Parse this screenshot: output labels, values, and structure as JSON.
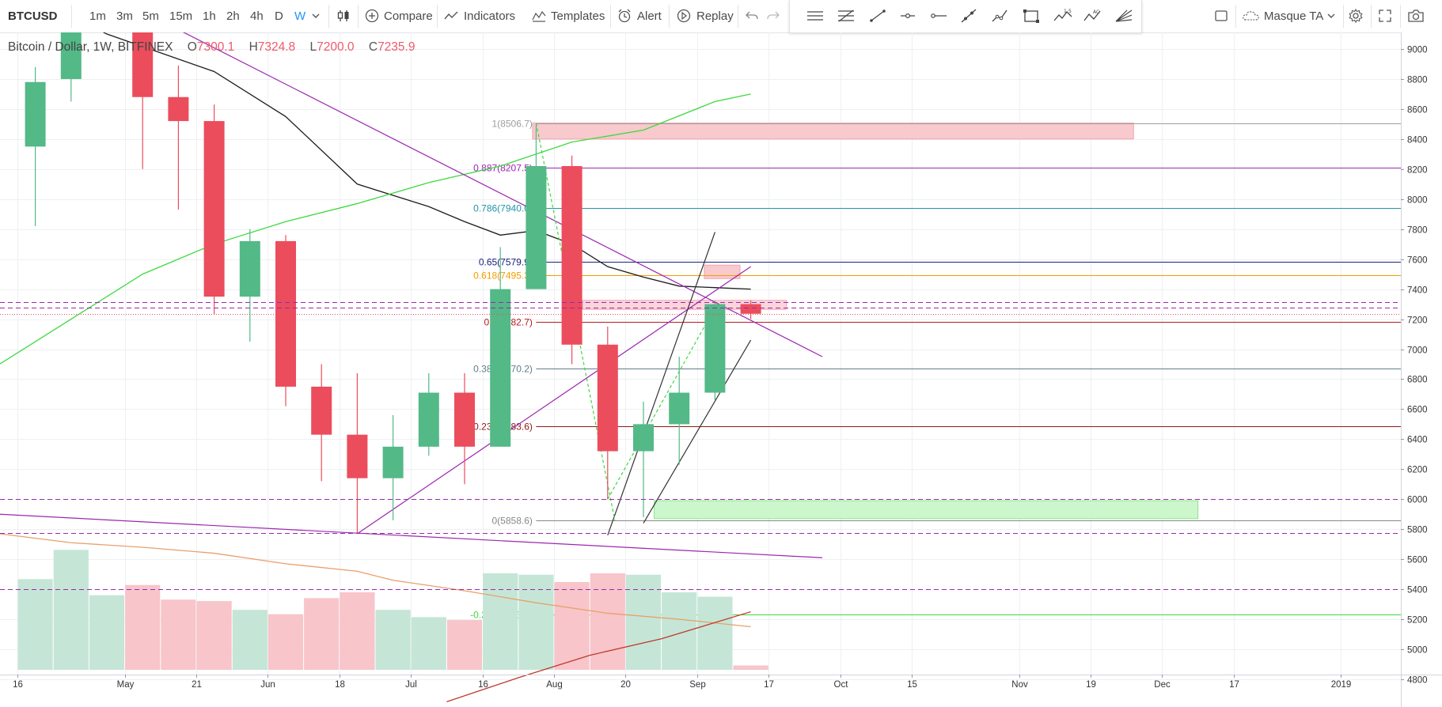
{
  "toolbar": {
    "symbol": "BTCUSD",
    "intervals": [
      "1m",
      "3m",
      "5m",
      "15m",
      "1h",
      "2h",
      "4h",
      "D",
      "W"
    ],
    "active_interval": "W",
    "compare_label": "Compare",
    "indicators_label": "Indicators",
    "templates_label": "Templates",
    "alert_label": "Alert",
    "replay_label": "Replay",
    "hide_label": "Masque TA"
  },
  "legend": {
    "title": "Bitcoin / Dollar, 1W, BITFINEX",
    "open_label": "O",
    "open": "7300.1",
    "high_label": "H",
    "high": "7324.8",
    "low_label": "L",
    "low": "7200.0",
    "close_label": "C",
    "close": "7235.9"
  },
  "colors": {
    "up": "#53b987",
    "down": "#eb4d5c",
    "volume_up": "#c5e6d6",
    "volume_down": "#f7c5ca",
    "purple": "#9c27b0",
    "purple_label": "#a000ff"
  },
  "chart_data": {
    "type": "candlestick",
    "interval": "1W",
    "ylim": [
      4650,
      9150
    ],
    "y_ticks": [
      4800,
      5000,
      5200,
      5400,
      5600,
      5800,
      6000,
      6200,
      6400,
      6600,
      6800,
      7000,
      7200,
      7400,
      7600,
      7800,
      8000,
      8200,
      8400,
      8600,
      8800,
      9000
    ],
    "x_labels": [
      {
        "i": -5,
        "label": "16"
      },
      {
        "i": -2,
        "label": "May"
      },
      {
        "i": 0,
        "label": "21"
      },
      {
        "i": 2,
        "label": "Jun"
      },
      {
        "i": 4,
        "label": "18"
      },
      {
        "i": 6,
        "label": "Jul"
      },
      {
        "i": 8,
        "label": "16"
      },
      {
        "i": 10,
        "label": "Aug"
      },
      {
        "i": 12,
        "label": "20"
      },
      {
        "i": 14,
        "label": "Sep"
      },
      {
        "i": 16,
        "label": "17"
      },
      {
        "i": 18,
        "label": "Oct"
      },
      {
        "i": 20,
        "label": "15"
      },
      {
        "i": 23,
        "label": "Nov"
      },
      {
        "i": 25,
        "label": "19"
      },
      {
        "i": 27,
        "label": "Dec"
      },
      {
        "i": 29,
        "label": "17"
      },
      {
        "i": 32,
        "label": "2019"
      }
    ],
    "candles": [
      {
        "i": -4.5,
        "o": 8350,
        "h": 8880,
        "l": 7820,
        "c": 8780
      },
      {
        "i": -3.5,
        "o": 8800,
        "h": 9280,
        "l": 8650,
        "c": 9250
      },
      {
        "i": -1.5,
        "o": 9230,
        "h": 9380,
        "l": 8200,
        "c": 8680
      },
      {
        "i": -0.5,
        "o": 8680,
        "h": 8890,
        "l": 7930,
        "c": 8520
      },
      {
        "i": 0.5,
        "o": 8520,
        "h": 8630,
        "l": 7230,
        "c": 7350
      },
      {
        "i": 1.5,
        "o": 7350,
        "h": 7800,
        "l": 7050,
        "c": 7720
      },
      {
        "i": 2.5,
        "o": 7720,
        "h": 7760,
        "l": 6620,
        "c": 6750
      },
      {
        "i": 3.5,
        "o": 6750,
        "h": 6900,
        "l": 6120,
        "c": 6430
      },
      {
        "i": 4.5,
        "o": 6430,
        "h": 6840,
        "l": 5770,
        "c": 6140
      },
      {
        "i": 5.5,
        "o": 6140,
        "h": 6560,
        "l": 5860,
        "c": 6350
      },
      {
        "i": 6.5,
        "o": 6350,
        "h": 6840,
        "l": 6290,
        "c": 6710
      },
      {
        "i": 7.5,
        "o": 6710,
        "h": 6840,
        "l": 6100,
        "c": 6350
      },
      {
        "i": 8.5,
        "o": 6350,
        "h": 7680,
        "l": 6350,
        "c": 7400
      },
      {
        "i": 9.5,
        "o": 7400,
        "h": 8500,
        "l": 7400,
        "c": 8220
      },
      {
        "i": 10.5,
        "o": 8220,
        "h": 8290,
        "l": 6900,
        "c": 7030
      },
      {
        "i": 11.5,
        "o": 7030,
        "h": 7150,
        "l": 6000,
        "c": 6320
      },
      {
        "i": 12.5,
        "o": 6320,
        "h": 6650,
        "l": 5880,
        "c": 6500
      },
      {
        "i": 13.5,
        "o": 6500,
        "h": 6950,
        "l": 6230,
        "c": 6710
      },
      {
        "i": 14.5,
        "o": 6710,
        "h": 7320,
        "l": 6660,
        "c": 7300
      },
      {
        "i": 15.5,
        "o": 7300.1,
        "h": 7324.8,
        "l": 7200.0,
        "c": 7235.9
      }
    ],
    "volume": [
      {
        "i": -4.5,
        "v": 0.62,
        "up": true
      },
      {
        "i": -3.5,
        "v": 0.82,
        "up": true
      },
      {
        "i": -2.5,
        "v": 0.51,
        "up": true
      },
      {
        "i": -1.5,
        "v": 0.58,
        "up": false
      },
      {
        "i": -0.5,
        "v": 0.48,
        "up": false
      },
      {
        "i": 0.5,
        "v": 0.47,
        "up": false
      },
      {
        "i": 1.5,
        "v": 0.41,
        "up": true
      },
      {
        "i": 2.5,
        "v": 0.38,
        "up": false
      },
      {
        "i": 3.5,
        "v": 0.49,
        "up": false
      },
      {
        "i": 4.5,
        "v": 0.53,
        "up": false
      },
      {
        "i": 5.5,
        "v": 0.41,
        "up": true
      },
      {
        "i": 6.5,
        "v": 0.36,
        "up": true
      },
      {
        "i": 7.5,
        "v": 0.34,
        "up": false
      },
      {
        "i": 8.5,
        "v": 0.66,
        "up": true
      },
      {
        "i": 9.5,
        "v": 0.65,
        "up": true
      },
      {
        "i": 10.5,
        "v": 0.6,
        "up": false
      },
      {
        "i": 11.5,
        "v": 0.66,
        "up": false
      },
      {
        "i": 12.5,
        "v": 0.65,
        "up": true
      },
      {
        "i": 13.5,
        "v": 0.53,
        "up": true
      },
      {
        "i": 14.5,
        "v": 0.5,
        "up": true
      },
      {
        "i": 15.5,
        "v": 0.03,
        "up": false
      }
    ],
    "moving_averages": [
      {
        "color": "#1c1c1c",
        "points": [
          [
            -4.5,
            9350
          ],
          [
            -2.5,
            9100
          ],
          [
            0.5,
            8850
          ],
          [
            2.5,
            8550
          ],
          [
            4.5,
            8100
          ],
          [
            6.5,
            7950
          ],
          [
            7.5,
            7850
          ],
          [
            8.5,
            7760
          ],
          [
            9.5,
            7790
          ],
          [
            10.5,
            7700
          ],
          [
            11.5,
            7550
          ],
          [
            12.5,
            7480
          ],
          [
            13.5,
            7420
          ],
          [
            14.5,
            7410
          ],
          [
            15.5,
            7400
          ]
        ]
      },
      {
        "color": "#3ed93e",
        "points": [
          [
            -5.5,
            6900
          ],
          [
            -3.5,
            7200
          ],
          [
            -1.5,
            7500
          ],
          [
            0.5,
            7700
          ],
          [
            2.5,
            7850
          ],
          [
            4.5,
            7970
          ],
          [
            6.5,
            8110
          ],
          [
            8.5,
            8220
          ],
          [
            10.5,
            8380
          ],
          [
            12.5,
            8460
          ],
          [
            14.5,
            8650
          ],
          [
            15.5,
            8700
          ]
        ]
      },
      {
        "color": "#e8a06b",
        "points": [
          [
            -5.5,
            5770
          ],
          [
            -3.5,
            5710
          ],
          [
            -1.5,
            5680
          ],
          [
            0.5,
            5640
          ],
          [
            2.5,
            5570
          ],
          [
            4.5,
            5520
          ],
          [
            5.5,
            5460
          ],
          [
            7.5,
            5390
          ],
          [
            9.5,
            5310
          ],
          [
            11.5,
            5240
          ],
          [
            13.5,
            5200
          ],
          [
            15.5,
            5150
          ]
        ]
      },
      {
        "color": "#c0392b",
        "points": [
          [
            7.0,
            4650
          ],
          [
            9.0,
            4810
          ],
          [
            11.0,
            4960
          ],
          [
            13.0,
            5070
          ],
          [
            15.5,
            5250
          ]
        ]
      }
    ],
    "fib_levels": [
      {
        "label": "1(8506.7)",
        "price": 8506.7,
        "color": "#9e9e9e"
      },
      {
        "label": "0.887(8207.5)",
        "price": 8207.5,
        "color": "#9c27b0"
      },
      {
        "label": "0.786(7940.0)",
        "price": 7940.0,
        "color": "#2196a8"
      },
      {
        "label": "0.65(7579.9)",
        "price": 7579.9,
        "color": "#1a237e"
      },
      {
        "label": "0.618(7495.3)",
        "price": 7495.3,
        "color": "#f0a000"
      },
      {
        "label": "0.5(7182.7)",
        "price": 7182.7,
        "color": "#b71c1c"
      },
      {
        "label": "0.382(6870.2)",
        "price": 6870.2,
        "color": "#607d8b"
      },
      {
        "label": "0.236(6483.6)",
        "price": 6483.6,
        "color": "#8b1a1a"
      },
      {
        "label": "0(5858.6)",
        "price": 5858.6,
        "color": "#888888"
      },
      {
        "label": "-0.236(5233.6)",
        "price": 5233.6,
        "color": "#3ed93e"
      }
    ],
    "dashed_levels": [
      {
        "price": 6000.0,
        "label": "6000.0"
      },
      {
        "price": 5777.1,
        "label": "5777.1"
      },
      {
        "price": 5400.2,
        "label": "5400.2"
      },
      {
        "price": 7315.9,
        "label": "7315.9"
      },
      {
        "price": 7276.4,
        "label": "7276.4"
      }
    ],
    "current_price": {
      "price": 7235.9,
      "label": "7235.9"
    }
  }
}
